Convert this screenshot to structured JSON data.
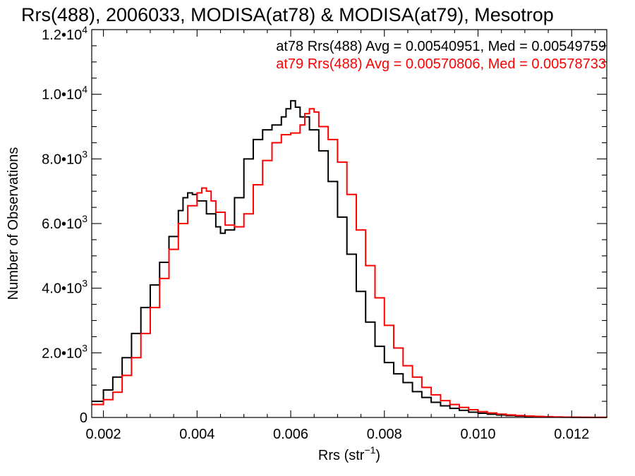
{
  "chart_data": {
    "type": "line",
    "title": "Rrs(488), 2006033, MODISA(at78) & MODISA(at79), Mesotrop",
    "xlabel": "Rrs (str",
    "xlabel_sup": "−1",
    "xlabel_close": ")",
    "ylabel": "Number of Observations",
    "xlim": [
      0.00175,
      0.01275
    ],
    "ylim": [
      0,
      12000
    ],
    "x_ticks": [
      0.002,
      0.004,
      0.006,
      0.008,
      0.01,
      0.012
    ],
    "x_tick_labels": [
      "0.002",
      "0.004",
      "0.006",
      "0.008",
      "0.010",
      "0.012"
    ],
    "y_ticks": [
      0,
      2000,
      4000,
      6000,
      8000,
      10000,
      12000
    ],
    "y_tick_labels": [
      {
        "base": "0",
        "exp": ""
      },
      {
        "base": "2.0•10",
        "exp": "3"
      },
      {
        "base": "4.0•10",
        "exp": "3"
      },
      {
        "base": "6.0•10",
        "exp": "3"
      },
      {
        "base": "8.0•10",
        "exp": "3"
      },
      {
        "base": "1.0•10",
        "exp": "4"
      },
      {
        "base": "1.2•10",
        "exp": "4"
      }
    ],
    "grid": false,
    "legend_position": "top-right",
    "stats": [
      {
        "text": "at78 Rrs(488) Avg = 0.00540951, Med = 0.00549759",
        "color": "#000000"
      },
      {
        "text": "at79 Rrs(488) Avg = 0.00570806, Med = 0.00578733",
        "color": "#ff0000"
      }
    ],
    "series": [
      {
        "color": "#000000",
        "style": "step",
        "x": [
          0.00175,
          0.002,
          0.0022,
          0.0024,
          0.0026,
          0.0028,
          0.003,
          0.0032,
          0.0034,
          0.0036,
          0.0037,
          0.0038,
          0.0039,
          0.004,
          0.0042,
          0.0044,
          0.0045,
          0.0046,
          0.0048,
          0.005,
          0.0052,
          0.0054,
          0.0056,
          0.0058,
          0.0059,
          0.006,
          0.0061,
          0.0062,
          0.0064,
          0.0066,
          0.0068,
          0.007,
          0.0072,
          0.0074,
          0.0076,
          0.0078,
          0.008,
          0.0082,
          0.0084,
          0.0086,
          0.0088,
          0.009,
          0.0092,
          0.0094,
          0.0096,
          0.0098,
          0.01,
          0.0102,
          0.0104,
          0.0106,
          0.0108,
          0.011,
          0.0112,
          0.0114,
          0.0116,
          0.0118,
          0.012,
          0.0122,
          0.0124,
          0.01275
        ],
        "values": [
          500,
          850,
          1250,
          1850,
          2600,
          3400,
          4100,
          4800,
          5600,
          6400,
          6800,
          6950,
          6900,
          6700,
          6300,
          5900,
          5700,
          5800,
          6800,
          8000,
          8600,
          8900,
          9050,
          9300,
          9550,
          9800,
          9600,
          9300,
          8900,
          8250,
          7300,
          6200,
          5050,
          3900,
          2950,
          2200,
          1700,
          1350,
          1080,
          800,
          620,
          470,
          360,
          280,
          220,
          165,
          130,
          100,
          75,
          58,
          45,
          33,
          24,
          17,
          12,
          8,
          6,
          4,
          3,
          2
        ]
      },
      {
        "color": "#ff0000",
        "style": "step",
        "x": [
          0.00175,
          0.002,
          0.0022,
          0.0024,
          0.0026,
          0.0028,
          0.003,
          0.0032,
          0.0034,
          0.0036,
          0.0038,
          0.004,
          0.0041,
          0.0042,
          0.0043,
          0.0044,
          0.0046,
          0.0048,
          0.005,
          0.0052,
          0.0054,
          0.0056,
          0.0058,
          0.006,
          0.0062,
          0.0063,
          0.0064,
          0.0065,
          0.0066,
          0.0068,
          0.007,
          0.0072,
          0.0074,
          0.0076,
          0.0078,
          0.008,
          0.0082,
          0.0084,
          0.0086,
          0.0088,
          0.009,
          0.0092,
          0.0094,
          0.0096,
          0.0098,
          0.01,
          0.0102,
          0.0104,
          0.0106,
          0.0108,
          0.011,
          0.0112,
          0.0114,
          0.0116,
          0.0118,
          0.012,
          0.0122,
          0.0124,
          0.01275
        ],
        "values": [
          400,
          550,
          780,
          1300,
          1850,
          2600,
          3400,
          4300,
          5200,
          6000,
          6550,
          6950,
          7100,
          7000,
          6700,
          6350,
          5950,
          5900,
          6300,
          7200,
          7950,
          8500,
          8750,
          8800,
          9050,
          9400,
          9550,
          9450,
          9000,
          8600,
          7900,
          6900,
          5800,
          4700,
          3700,
          2850,
          2150,
          1600,
          1250,
          930,
          700,
          520,
          400,
          310,
          240,
          180,
          140,
          105,
          80,
          60,
          45,
          33,
          24,
          17,
          12,
          8,
          6,
          4,
          3
        ]
      }
    ]
  }
}
